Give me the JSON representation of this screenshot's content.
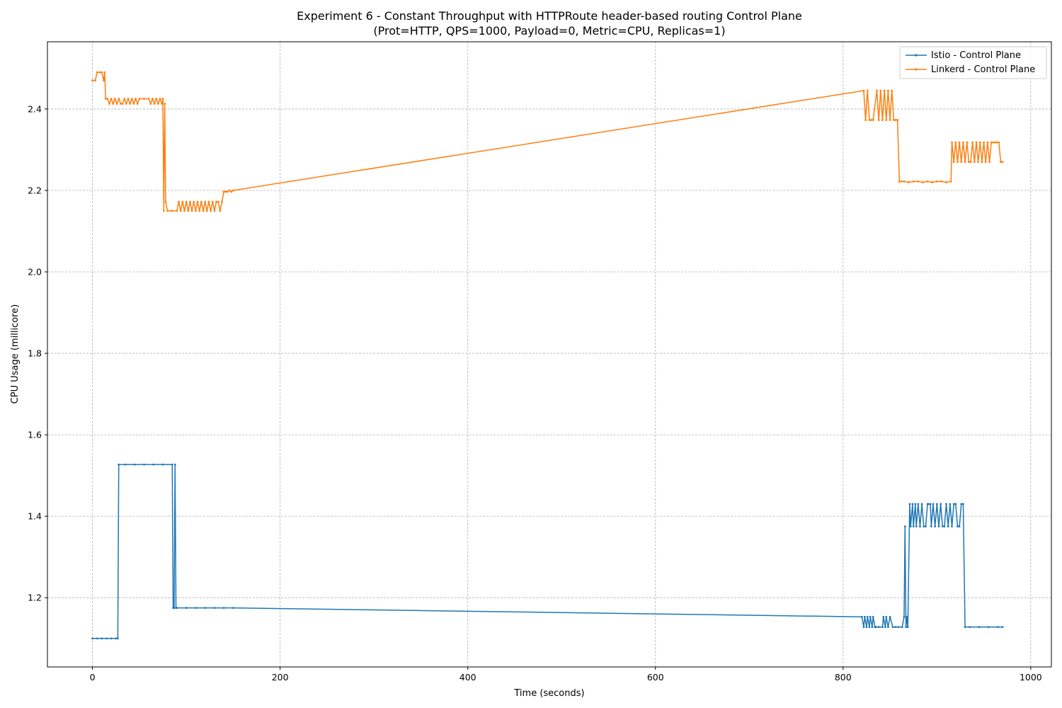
{
  "chart_data": {
    "type": "line",
    "title": "Experiment 6 - Constant Throughput with HTTPRoute header-based routing Control Plane",
    "subtitle": "(Prot=HTTP, QPS=1000, Payload=0, Metric=CPU, Replicas=1)",
    "xlabel": "Time (seconds)",
    "ylabel": "CPU Usage (millicore)",
    "xlim": [
      -48,
      1022
    ],
    "ylim": [
      1.03,
      2.565
    ],
    "xticks": [
      0,
      200,
      400,
      600,
      800,
      1000
    ],
    "yticks": [
      1.2,
      1.4,
      1.6,
      1.8,
      2.0,
      2.2,
      2.4
    ],
    "xtick_labels": [
      "0",
      "200",
      "400",
      "600",
      "800",
      "1000"
    ],
    "ytick_labels": [
      "1.2",
      "1.4",
      "1.6",
      "1.8",
      "2.0",
      "2.2",
      "2.4"
    ],
    "grid": true,
    "legend_position": "top-right",
    "series": [
      {
        "name": "Istio - Control Plane",
        "color": "#1f77b4",
        "x": [
          0,
          5,
          10,
          15,
          20,
          25,
          27,
          28,
          35,
          45,
          55,
          65,
          75,
          85,
          86,
          87,
          88,
          89,
          90,
          100,
          110,
          120,
          130,
          140,
          150,
          820,
          822,
          823,
          825,
          826,
          828,
          829,
          831,
          832,
          834,
          835,
          838,
          842,
          843,
          845,
          846,
          848,
          850,
          853,
          856,
          859,
          863,
          865,
          866,
          867,
          868,
          869,
          871,
          872,
          874,
          875,
          877,
          878,
          880,
          882,
          884,
          886,
          888,
          890,
          891,
          893,
          894,
          896,
          898,
          900,
          902,
          904,
          906,
          908,
          910,
          912,
          914,
          916,
          918,
          920,
          922,
          924,
          926,
          928,
          930,
          935,
          945,
          955,
          965,
          970
        ],
        "y": [
          1.1,
          1.1,
          1.1,
          1.1,
          1.1,
          1.1,
          1.1,
          1.527,
          1.527,
          1.527,
          1.527,
          1.527,
          1.527,
          1.527,
          1.175,
          1.175,
          1.527,
          1.175,
          1.175,
          1.175,
          1.175,
          1.175,
          1.175,
          1.175,
          1.175,
          1.153,
          1.128,
          1.153,
          1.128,
          1.153,
          1.128,
          1.153,
          1.128,
          1.153,
          1.128,
          1.128,
          1.128,
          1.128,
          1.153,
          1.128,
          1.153,
          1.128,
          1.153,
          1.128,
          1.128,
          1.128,
          1.128,
          1.153,
          1.375,
          1.128,
          1.153,
          1.128,
          1.43,
          1.375,
          1.43,
          1.375,
          1.43,
          1.375,
          1.43,
          1.375,
          1.43,
          1.375,
          1.375,
          1.43,
          1.43,
          1.43,
          1.375,
          1.43,
          1.375,
          1.43,
          1.375,
          1.43,
          1.375,
          1.375,
          1.43,
          1.375,
          1.43,
          1.375,
          1.43,
          1.43,
          1.375,
          1.375,
          1.43,
          1.43,
          1.128,
          1.128,
          1.128,
          1.128,
          1.128,
          1.128
        ]
      },
      {
        "name": "Linkerd - Control Plane",
        "color": "#ff7f0e",
        "x": [
          0,
          3,
          5,
          8,
          10,
          12,
          13,
          14,
          16,
          18,
          20,
          22,
          24,
          26,
          28,
          30,
          32,
          34,
          36,
          38,
          40,
          42,
          44,
          46,
          48,
          50,
          55,
          60,
          62,
          64,
          66,
          68,
          70,
          72,
          74,
          75,
          76,
          77,
          78,
          80,
          85,
          90,
          92,
          94,
          96,
          98,
          100,
          102,
          104,
          106,
          108,
          110,
          112,
          114,
          116,
          118,
          120,
          122,
          124,
          126,
          128,
          130,
          132,
          134,
          136,
          138,
          140,
          142,
          144,
          146,
          148,
          150,
          822,
          824,
          826,
          828,
          830,
          832,
          836,
          838,
          840,
          842,
          844,
          846,
          848,
          850,
          852,
          854,
          856,
          858,
          860,
          862,
          865,
          870,
          875,
          880,
          885,
          890,
          895,
          900,
          905,
          910,
          915,
          916,
          918,
          920,
          922,
          924,
          926,
          928,
          930,
          932,
          934,
          936,
          938,
          940,
          942,
          944,
          946,
          948,
          950,
          952,
          954,
          956,
          958,
          960,
          962,
          964,
          966,
          968,
          970
        ],
        "y": [
          2.47,
          2.47,
          2.49,
          2.49,
          2.49,
          2.47,
          2.49,
          2.425,
          2.425,
          2.413,
          2.425,
          2.413,
          2.425,
          2.413,
          2.425,
          2.413,
          2.413,
          2.425,
          2.413,
          2.425,
          2.413,
          2.425,
          2.413,
          2.425,
          2.413,
          2.425,
          2.425,
          2.425,
          2.413,
          2.425,
          2.413,
          2.425,
          2.413,
          2.425,
          2.413,
          2.425,
          2.15,
          2.413,
          2.172,
          2.15,
          2.15,
          2.15,
          2.172,
          2.15,
          2.172,
          2.15,
          2.172,
          2.15,
          2.172,
          2.15,
          2.172,
          2.15,
          2.172,
          2.15,
          2.172,
          2.15,
          2.172,
          2.15,
          2.172,
          2.15,
          2.172,
          2.15,
          2.172,
          2.172,
          2.15,
          2.172,
          2.197,
          2.197,
          2.197,
          2.2,
          2.197,
          2.2,
          2.445,
          2.373,
          2.445,
          2.373,
          2.373,
          2.373,
          2.445,
          2.373,
          2.445,
          2.373,
          2.445,
          2.373,
          2.445,
          2.373,
          2.445,
          2.373,
          2.373,
          2.373,
          2.222,
          2.222,
          2.222,
          2.22,
          2.222,
          2.222,
          2.22,
          2.222,
          2.22,
          2.222,
          2.222,
          2.22,
          2.222,
          2.318,
          2.27,
          2.318,
          2.27,
          2.318,
          2.27,
          2.318,
          2.27,
          2.318,
          2.27,
          2.27,
          2.318,
          2.27,
          2.318,
          2.27,
          2.318,
          2.27,
          2.318,
          2.27,
          2.318,
          2.27,
          2.318,
          2.318,
          2.318,
          2.318,
          2.318,
          2.27,
          2.27
        ]
      }
    ]
  }
}
